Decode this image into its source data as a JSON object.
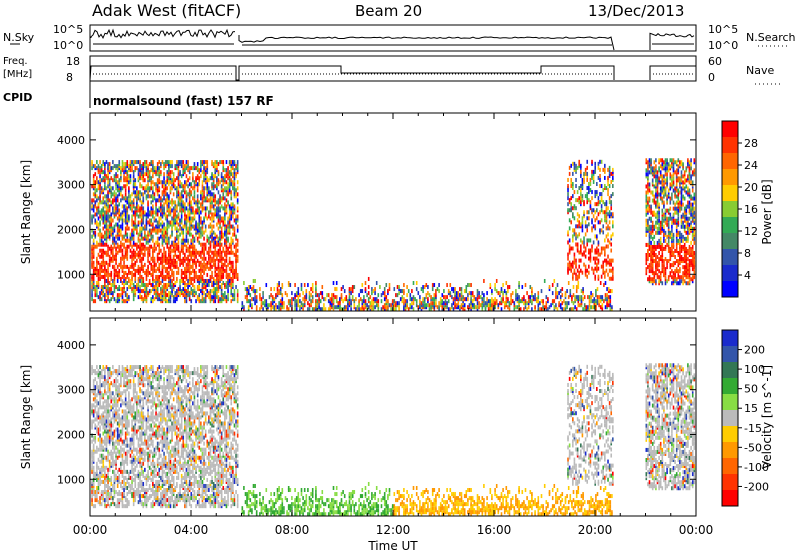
{
  "header": {
    "station": "Adak West (fitACF)",
    "beam": "Beam 20",
    "date": "13/Dec/2013"
  },
  "panels": {
    "nsky_label": "N.Sky",
    "nsky_ticks": [
      "10^5",
      "10^0"
    ],
    "nsearch_label": "N.Search",
    "nsearch_ticks": [
      "10^5",
      "10^0"
    ],
    "freq_label_1": "Freq.",
    "freq_label_2": "[MHz]",
    "freq_ticks": [
      "18",
      "8"
    ],
    "nave_label": "Nave",
    "nave_ticks": [
      "60",
      "0"
    ],
    "cpid_label": "CPID",
    "cpid_text": "normalsound (fast) 157 RF"
  },
  "chart_data": [
    {
      "type": "heatmap",
      "name": "power",
      "ylabel": "Slant Range [km]",
      "xlabel": "",
      "yticks": [
        1000,
        2000,
        3000,
        4000
      ],
      "ylim": [
        180,
        4600
      ],
      "xlim_hours": [
        0,
        24
      ],
      "colorbar": {
        "label": "Power [dB]",
        "ticks": [
          "28",
          "24",
          "20",
          "16",
          "12",
          "8",
          "4"
        ],
        "colors": [
          "#ff0000",
          "#ff3300",
          "#ff6600",
          "#ff9900",
          "#ffcc00",
          "#88cc33",
          "#33aa55",
          "#448866",
          "#3355aa",
          "#1a2bcc",
          "#0000ff"
        ]
      },
      "data_gap_hours": [
        20.75,
        22.0
      ]
    },
    {
      "type": "heatmap",
      "name": "velocity",
      "ylabel": "Slant Range [km]",
      "xlabel": "Time UT",
      "yticks": [
        1000,
        2000,
        3000,
        4000
      ],
      "ylim": [
        180,
        4600
      ],
      "xlim_hours": [
        0,
        24
      ],
      "xticks": [
        "00:00",
        "04:00",
        "08:00",
        "12:00",
        "16:00",
        "20:00",
        "00:00"
      ],
      "colorbar": {
        "label": "Velocity [m s^-1]",
        "ticks": [
          "200",
          "100",
          "50",
          "15",
          "-15",
          "-50",
          "-100",
          "-200"
        ],
        "colors": [
          "#1a2bcc",
          "#3355aa",
          "#337755",
          "#33aa33",
          "#88dd44",
          "#bbbbbb",
          "#ffcc00",
          "#ff9900",
          "#ff6600",
          "#ff3300",
          "#ff0000"
        ]
      },
      "data_gap_hours": [
        20.75,
        22.0
      ]
    }
  ]
}
